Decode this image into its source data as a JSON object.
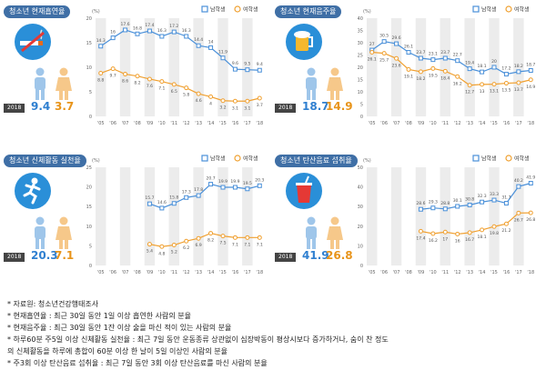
{
  "chart_data": [
    {
      "type": "line",
      "title": "청소년 현재흡연율",
      "unit": "(%)",
      "x": [
        "'05",
        "'06",
        "'07",
        "'08",
        "'09",
        "'10",
        "'11",
        "'12",
        "'13",
        "'14",
        "'15",
        "'16",
        "'17",
        "'18"
      ],
      "ylim": [
        0,
        20
      ],
      "yticks": [
        0,
        5,
        10,
        15,
        20
      ],
      "series": [
        {
          "name": "남학생",
          "color": "#4a90d9",
          "values": [
            14.3,
            16.0,
            17.6,
            16.8,
            17.4,
            16.3,
            17.2,
            16.3,
            14.4,
            14.0,
            11.9,
            9.6,
            9.5,
            9.4
          ]
        },
        {
          "name": "여학생",
          "color": "#f0a030",
          "values": [
            8.8,
            9.7,
            8.6,
            8.2,
            7.6,
            7.1,
            6.5,
            5.8,
            4.6,
            4.0,
            3.2,
            3.1,
            3.1,
            3.7
          ]
        }
      ],
      "year_badge": "2018",
      "boy_value": "9.4",
      "girl_value": "3.7",
      "icon": "cigarette-icon"
    },
    {
      "type": "line",
      "title": "청소년 현재음주율",
      "unit": "(%)",
      "x": [
        "'05",
        "'06",
        "'07",
        "'08",
        "'09",
        "'10",
        "'11",
        "'12",
        "'13",
        "'14",
        "'15",
        "'16",
        "'17",
        "'18"
      ],
      "ylim": [
        0,
        40
      ],
      "yticks": [
        0,
        5,
        10,
        15,
        20,
        25,
        30,
        35,
        40
      ],
      "series": [
        {
          "name": "남학생",
          "color": "#4a90d9",
          "values": [
            27.0,
            30.5,
            29.6,
            26.1,
            23.7,
            23.1,
            23.7,
            22.7,
            19.4,
            18.1,
            20.0,
            17.2,
            18.2,
            18.7
          ]
        },
        {
          "name": "여학생",
          "color": "#f0a030",
          "values": [
            26.1,
            25.7,
            23.6,
            19.1,
            18.2,
            19.5,
            18.4,
            16.2,
            12.7,
            13.0,
            13.1,
            13.5,
            13.7,
            14.9
          ]
        }
      ],
      "year_badge": "2018",
      "boy_value": "18.7",
      "girl_value": "14.9",
      "icon": "beer-icon"
    },
    {
      "type": "line",
      "title": "청소년 신체활동 실천율",
      "unit": "(%)",
      "x": [
        "'05",
        "'06",
        "'07",
        "'08",
        "'09",
        "'10",
        "'11",
        "'12",
        "'13",
        "'14",
        "'15",
        "'16",
        "'17",
        "'18"
      ],
      "ylim": [
        0,
        25
      ],
      "yticks": [
        0,
        5,
        10,
        15,
        20,
        25
      ],
      "series": [
        {
          "name": "남학생",
          "color": "#4a90d9",
          "values": [
            null,
            null,
            null,
            null,
            15.7,
            14.6,
            15.8,
            17.3,
            17.8,
            20.7,
            19.9,
            19.9,
            19.5,
            20.3
          ]
        },
        {
          "name": "여학생",
          "color": "#f0a030",
          "values": [
            null,
            null,
            null,
            null,
            5.4,
            4.8,
            5.2,
            6.2,
            6.9,
            8.2,
            7.5,
            7.1,
            7.1,
            7.1
          ]
        }
      ],
      "year_badge": "2018",
      "boy_value": "20.3",
      "girl_value": "7.1",
      "icon": "runner-icon"
    },
    {
      "type": "line",
      "title": "청소년 탄산음료 섭취율",
      "unit": "(%)",
      "x": [
        "'05",
        "'06",
        "'07",
        "'08",
        "'09",
        "'10",
        "'11",
        "'12",
        "'13",
        "'14",
        "'15",
        "'16",
        "'17",
        "'18"
      ],
      "ylim": [
        0,
        50
      ],
      "yticks": [
        0,
        10,
        20,
        30,
        40,
        50
      ],
      "series": [
        {
          "name": "남학생",
          "color": "#4a90d9",
          "values": [
            null,
            null,
            null,
            null,
            28.6,
            29.3,
            28.8,
            30.1,
            30.8,
            32.3,
            33.3,
            31.7,
            40.2,
            41.9
          ]
        },
        {
          "name": "여학생",
          "color": "#f0a030",
          "values": [
            null,
            null,
            null,
            null,
            17.4,
            16.2,
            17.0,
            16.0,
            16.7,
            18.1,
            19.8,
            21.2,
            26.7,
            26.8
          ]
        }
      ],
      "year_badge": "2018",
      "boy_value": "41.9",
      "girl_value": "26.8",
      "icon": "soda-cup-icon"
    }
  ],
  "notes": [
    "* 자료원: 청소년건강행태조사",
    "* 현재흡연율 : 최근 30일 동안 1일 이상 흡연한 사람의 분율",
    "* 현재음주율 : 최근 30일 동안 1잔 이상 술을 마신 적이 있는 사람의 분율",
    "* 하루60분 주5일 이상 신체활동 실천율 : 최근 7일 동안 운동종류 상관없이 심장박동이 평상시보다 증가하거나, 숨이 찬 정도",
    "  의 신체활동을 하루에 총합이 60분 이상 한 날이 5일 이상인 사람의 분율",
    "* 주3회 이상 탄산음료 섭취율 : 최근 7일 동안 3회 이상 탄산음료를 마신 사람의 분율"
  ]
}
